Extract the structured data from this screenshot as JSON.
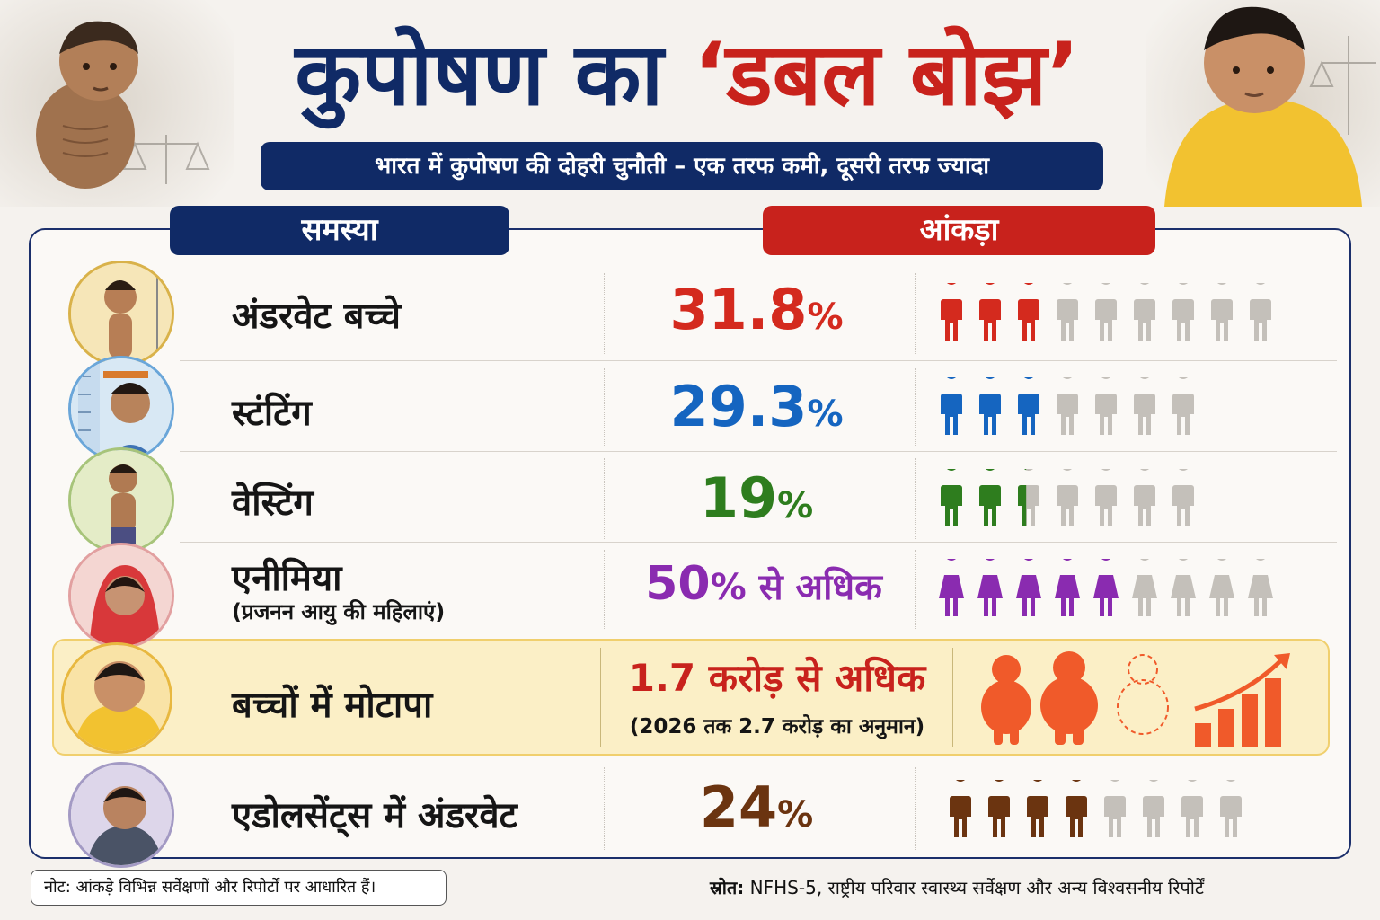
{
  "title": {
    "part1": "कुपोषण का",
    "part2": "‘डबल बोझ’"
  },
  "subtitle": "भारत में कुपोषण की दोहरी चुनौती – एक तरफ कमी, दूसरी तरफ ज्यादा",
  "headers": {
    "problem": "समस्या",
    "data": "आंकड़ा"
  },
  "rows": [
    {
      "label": "अंडरवेट बच्चे",
      "value": "31.8",
      "suffix": "%",
      "color": "#d42a1e",
      "filled": 3,
      "total": 9
    },
    {
      "label": "स्टंटिंग",
      "value": "29.3",
      "suffix": "%",
      "color": "#1565c0",
      "filled": 3,
      "total": 7
    },
    {
      "label": "वेस्टिंग",
      "value": "19",
      "suffix": "%",
      "color": "#2e7d1e",
      "filled": 2.4,
      "total": 7
    },
    {
      "label": "एनीमिया",
      "sublabel": "(प्रजनन आयु की महिलाएं)",
      "value": "50",
      "suffix": "% से अधिक",
      "color": "#8a2bb0",
      "filled": 5,
      "total": 9
    },
    {
      "label": "बच्चों में मोटापा",
      "value": "1.7 करोड़ से अधिक",
      "note": "(2026 तक 2.7 करोड़ का अनुमान)",
      "color": "#c8221c"
    },
    {
      "label": "एडोलसेंट्स में अंडरवेट",
      "value": "24",
      "suffix": "%",
      "color": "#6b3410",
      "filled": 4,
      "total": 8
    }
  ],
  "footer": {
    "note": "नोट: आंकड़े विभिन्न सर्वेक्षणों और रिपोर्टों पर आधारित हैं।",
    "source_label": "स्रोत:",
    "source_text": "NFHS-5, राष्ट्रीय परिवार स्वास्थ्य सर्वेक्षण और अन्य विश्वसनीय रिपोर्टें"
  },
  "icons": {
    "hero_left": "thin-child-illustration",
    "hero_right": "overweight-child-illustration",
    "row_people": "person-icon",
    "obesity_figures": "overweight-figure-icon",
    "trend": "rising-bar-chart-icon"
  }
}
